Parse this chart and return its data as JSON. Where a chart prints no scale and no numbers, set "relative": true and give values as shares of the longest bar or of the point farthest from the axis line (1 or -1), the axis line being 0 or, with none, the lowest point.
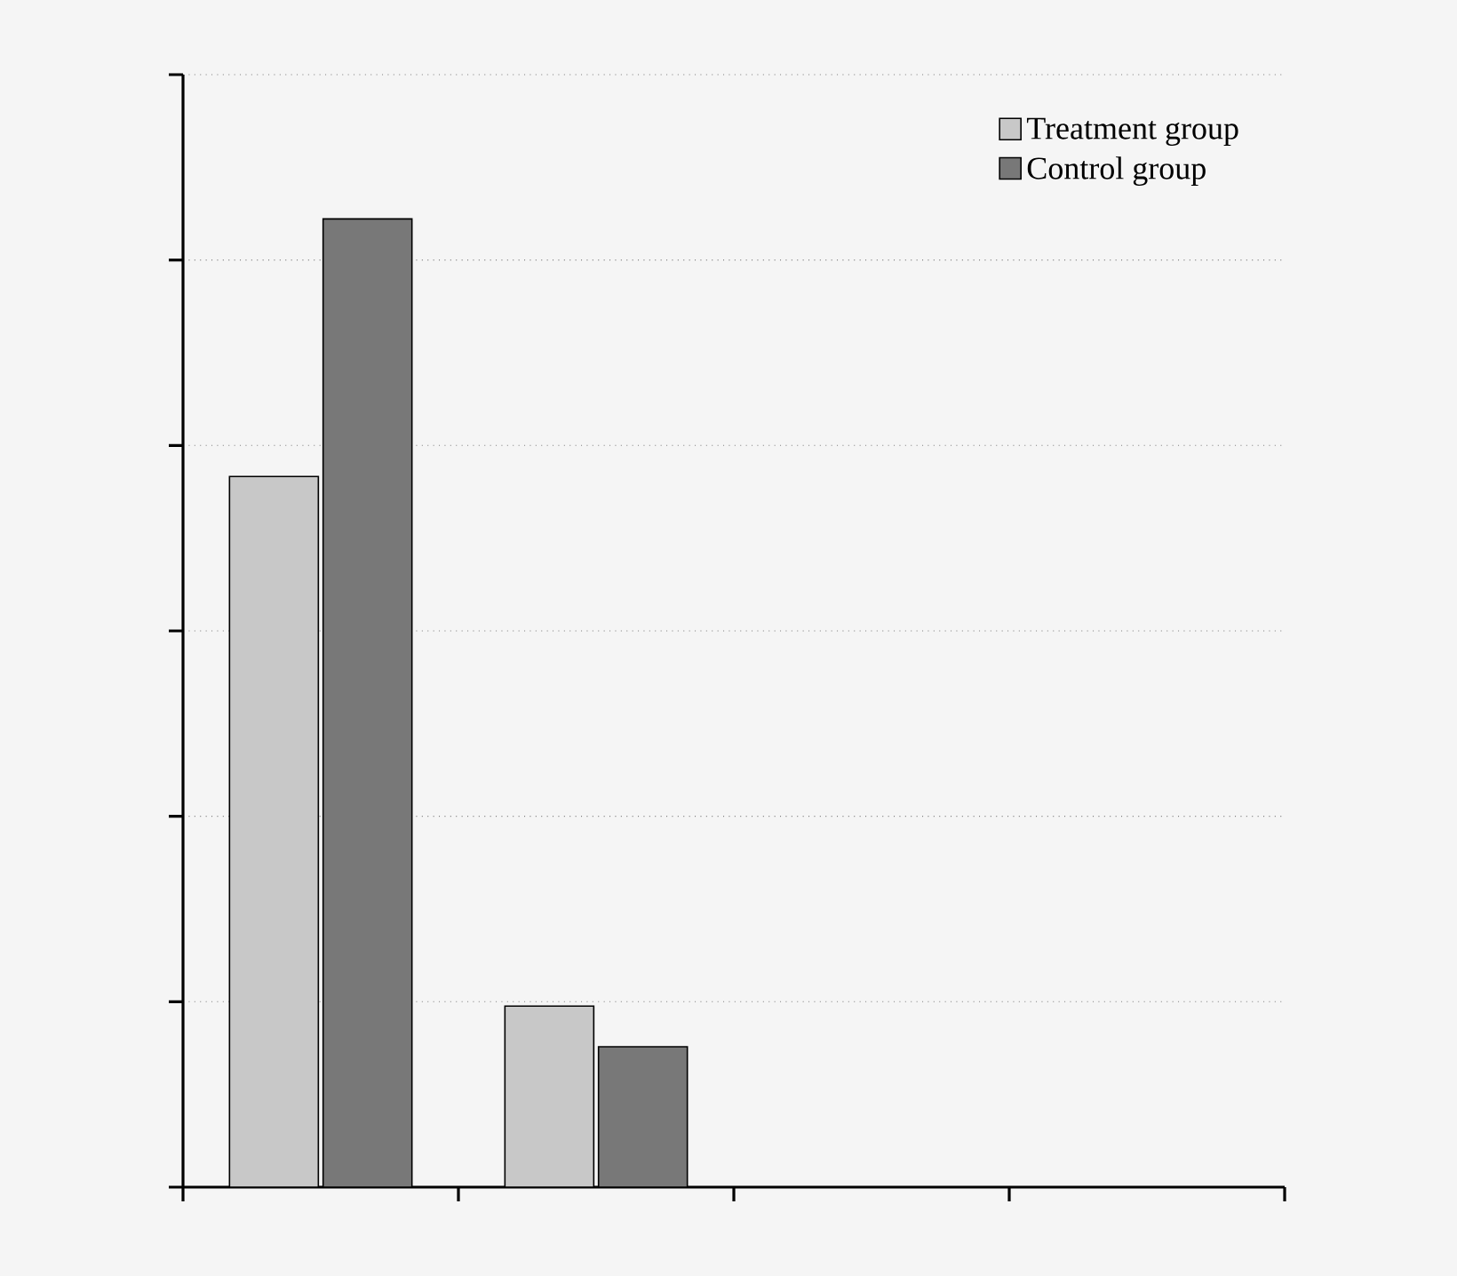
{
  "chart_data": {
    "type": "bar",
    "relative": true,
    "categories": [
      null,
      null
    ],
    "series": [
      {
        "name": "Treatment group",
        "color": "#c8c8c8",
        "values": [
          0.734,
          0.187
        ]
      },
      {
        "name": "Control group",
        "color": "#787878",
        "values": [
          1,
          0.145
        ]
      }
    ],
    "grid": "y",
    "legend": "top right"
  }
}
